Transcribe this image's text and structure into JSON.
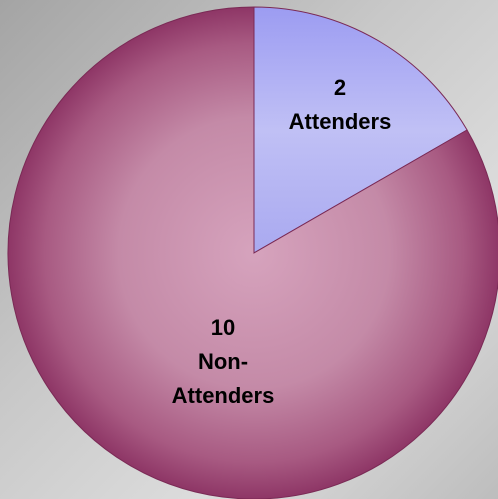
{
  "chart_data": {
    "type": "pie",
    "slices": [
      {
        "value": 2,
        "value_label": "2",
        "label_lines": [
          "Attenders"
        ],
        "color": "#b3b3f2"
      },
      {
        "value": 10,
        "value_label": "10",
        "label_lines": [
          "Non-",
          "Attenders"
        ],
        "color": "#b86f94"
      }
    ],
    "start_angle_deg": 0,
    "direction": "clockwise"
  },
  "colors": {
    "attenders_fill": "#b3b3f2",
    "non_attenders_fill": "#b86f94",
    "edge": "#7a2a55",
    "background": "#cccccc"
  }
}
